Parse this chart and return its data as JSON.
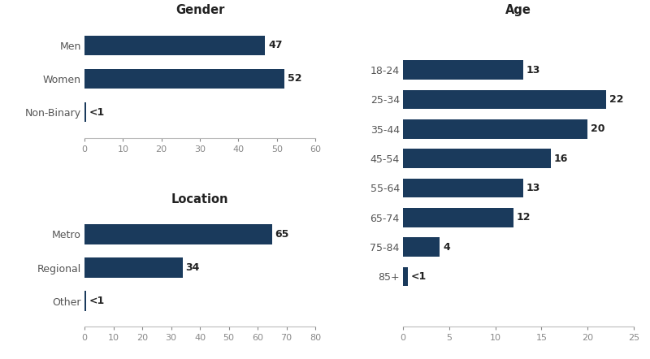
{
  "bar_color": "#1a3a5c",
  "background_color": "#ffffff",
  "title_fontsize": 10.5,
  "label_fontsize": 9,
  "tick_fontsize": 8,
  "value_fontsize": 9,
  "gender": {
    "title": "Gender",
    "categories": [
      "Men",
      "Women",
      "Non-Binary"
    ],
    "values": [
      47,
      52,
      0.5
    ],
    "labels": [
      "47",
      "52",
      "<1"
    ],
    "xlim": [
      0,
      60
    ],
    "xticks": [
      0,
      10,
      20,
      30,
      40,
      50,
      60
    ]
  },
  "location": {
    "title": "Location",
    "categories": [
      "Metro",
      "Regional",
      "Other"
    ],
    "values": [
      65,
      34,
      0.5
    ],
    "labels": [
      "65",
      "34",
      "<1"
    ],
    "xlim": [
      0,
      80
    ],
    "xticks": [
      0,
      10,
      20,
      30,
      40,
      50,
      60,
      70,
      80
    ]
  },
  "age": {
    "title": "Age",
    "categories": [
      "18-24",
      "25-34",
      "35-44",
      "45-54",
      "55-64",
      "65-74",
      "75-84",
      "85+"
    ],
    "values": [
      13,
      22,
      20,
      16,
      13,
      12,
      4,
      0.5
    ],
    "labels": [
      "13",
      "22",
      "20",
      "16",
      "13",
      "12",
      "4",
      "<1"
    ],
    "xlim": [
      0,
      25
    ],
    "xticks": [
      0,
      5,
      10,
      15,
      20,
      25
    ]
  }
}
